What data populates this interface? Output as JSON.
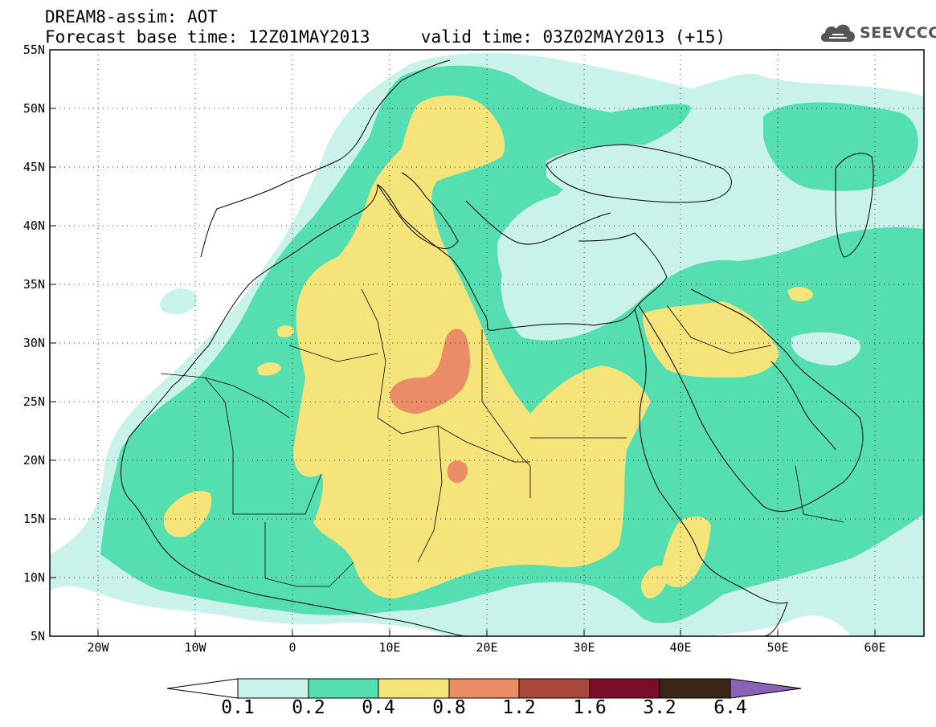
{
  "header": {
    "title": "DREAM8-assim: AOT",
    "forecast_base_label": "Forecast base time: 12Z01MAY2013",
    "valid_time_label": "valid time: 03Z02MAY2013 (+15)"
  },
  "logo": {
    "text": "SEEVCCC",
    "icon": "cloud-logo-icon",
    "color": "#555555"
  },
  "map": {
    "lon_range": [
      -25,
      65
    ],
    "lat_range": [
      5,
      55
    ],
    "x_ticks": [
      "20W",
      "10W",
      "0",
      "10E",
      "20E",
      "30E",
      "40E",
      "50E",
      "60E"
    ],
    "y_ticks": [
      "55N",
      "50N",
      "45N",
      "40N",
      "35N",
      "30N",
      "25N",
      "20N",
      "15N",
      "10N",
      "5N"
    ]
  },
  "colorbar": {
    "labels": [
      "0.1",
      "0.2",
      "0.4",
      "0.8",
      "1.2",
      "1.6",
      "3.2",
      "6.4"
    ],
    "colors": [
      "#c8f2ea",
      "#55dfb0",
      "#f4e47a",
      "#ea8d66",
      "#a8473a",
      "#7a0c2c",
      "#3d2418",
      "#8a62b8"
    ],
    "below_color": "#ffffff"
  }
}
